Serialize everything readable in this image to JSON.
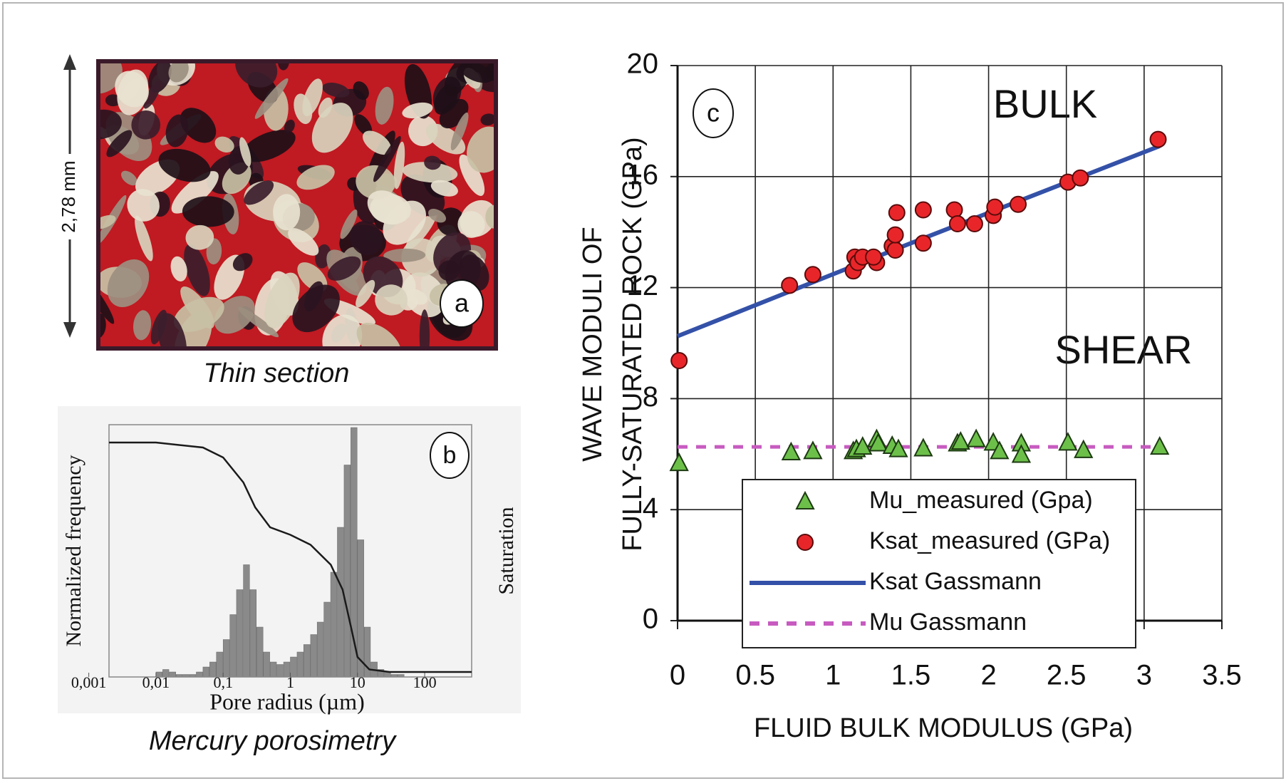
{
  "thin_section": {
    "label": "a",
    "scale": "2,78 mm",
    "caption": "Thin section"
  },
  "chart_data": [
    {
      "type": "scatter",
      "label": "c",
      "xlabel": "FLUID BULK MODULUS (GPa)",
      "ylabel": [
        "WAVE MODULI OF",
        "FULLY-SATURATED ROCK (GPa)"
      ],
      "annotations": [
        {
          "text": "BULK",
          "color": "#c8452c"
        },
        {
          "text": "SHEAR",
          "color": "#6bbf45"
        }
      ],
      "xlim": [
        0,
        3.5
      ],
      "xticks": [
        0,
        0.5,
        1,
        1.5,
        2,
        2.5,
        3,
        3.5
      ],
      "ylim": [
        0,
        20
      ],
      "yticks": [
        0,
        4,
        8,
        12,
        16,
        20
      ],
      "grid": true,
      "series": [
        {
          "name": "Mu_measured (Gpa)",
          "marker": "triangle",
          "color": "#6cc04a",
          "x": [
            0.01,
            0.73,
            0.87,
            1.13,
            1.15,
            1.19,
            1.28,
            1.29,
            1.38,
            1.42,
            1.58,
            1.8,
            1.82,
            1.92,
            2.03,
            2.07,
            2.21,
            2.21,
            2.51,
            2.61,
            3.1
          ],
          "values": [
            5.67,
            6.06,
            6.1,
            6.1,
            6.17,
            6.26,
            6.53,
            6.38,
            6.29,
            6.17,
            6.2,
            6.38,
            6.44,
            6.53,
            6.41,
            6.1,
            6.38,
            5.97,
            6.41,
            6.14,
            6.26
          ]
        },
        {
          "name": "Ksat_measured (GPa)",
          "marker": "circle",
          "color": "#e8262a",
          "x": [
            0.01,
            0.72,
            0.87,
            1.13,
            1.14,
            1.16,
            1.19,
            1.28,
            1.26,
            1.38,
            1.4,
            1.4,
            1.41,
            1.58,
            1.58,
            1.78,
            1.8,
            1.91,
            2.03,
            2.04,
            2.19,
            2.51,
            2.59,
            3.09
          ],
          "values": [
            9.37,
            12.08,
            12.47,
            12.6,
            13.1,
            12.9,
            13.1,
            12.9,
            13.1,
            13.5,
            13.35,
            13.9,
            14.7,
            13.6,
            14.8,
            14.8,
            14.3,
            14.3,
            14.6,
            14.9,
            15.0,
            15.8,
            15.95,
            17.34
          ]
        },
        {
          "name": "Ksat Gassmann",
          "marker": "line",
          "color": "#3451a8",
          "x": [
            0,
            1.5,
            3.1
          ],
          "values": [
            10.25,
            13.6,
            17.1
          ]
        },
        {
          "name": "Mu Gassmann",
          "marker": "dashed",
          "color": "#c75bc0",
          "x": [
            0,
            3.1
          ],
          "values": [
            6.26,
            6.26
          ]
        }
      ]
    },
    {
      "type": "histogram",
      "label": "b",
      "caption": "Mercury porosimetry",
      "xlabel": "Pore radius (µm)",
      "ylabel": "Normalized frequency",
      "y2label": "Saturation",
      "log_x": true,
      "xlim": [
        0.002,
        500
      ],
      "xticks": [
        {
          "value": 0.001,
          "label": "0,001"
        },
        {
          "value": 0.01,
          "label": "0,01"
        },
        {
          "value": 0.1,
          "label": "0,1"
        },
        1,
        10,
        100
      ],
      "ylim": [
        0,
        1
      ],
      "y2lim": [
        0,
        1
      ],
      "color": "#8a8a8a",
      "bins": [
        0.01,
        0.0126,
        0.0158,
        0.02,
        0.0251,
        0.0316,
        0.0398,
        0.0501,
        0.0631,
        0.0794,
        0.1,
        0.126,
        0.158,
        0.2,
        0.251,
        0.316,
        0.398,
        0.501,
        0.631,
        0.794,
        1,
        1.26,
        1.58,
        2,
        2.51,
        3.16,
        3.98,
        5.01,
        6.31,
        7.94,
        10,
        12.6,
        15.8,
        20,
        25.1,
        31.6,
        39.8,
        50.1,
        63.1,
        79.4,
        100
      ],
      "values": [
        0.02,
        0.03,
        0.02,
        0.01,
        0.01,
        0.01,
        0.02,
        0.04,
        0.06,
        0.1,
        0.15,
        0.25,
        0.35,
        0.45,
        0.35,
        0.2,
        0.1,
        0.06,
        0.05,
        0.06,
        0.08,
        0.1,
        0.13,
        0.17,
        0.22,
        0.3,
        0.42,
        0.6,
        0.85,
        1.0,
        0.55,
        0.2,
        0.06,
        0.03,
        0.02,
        0.01,
        0.01,
        0,
        0,
        0
      ],
      "series": [
        {
          "axis": "y2",
          "color": "#1a1a1a",
          "x": [
            0.002,
            0.01,
            0.05,
            0.1,
            0.2,
            0.3,
            0.5,
            1,
            2,
            4,
            6,
            8,
            10,
            15,
            30,
            100,
            500
          ],
          "values": [
            0.94,
            0.94,
            0.92,
            0.88,
            0.78,
            0.68,
            0.6,
            0.57,
            0.53,
            0.45,
            0.35,
            0.2,
            0.08,
            0.03,
            0.02,
            0.02,
            0.02
          ]
        }
      ]
    }
  ]
}
